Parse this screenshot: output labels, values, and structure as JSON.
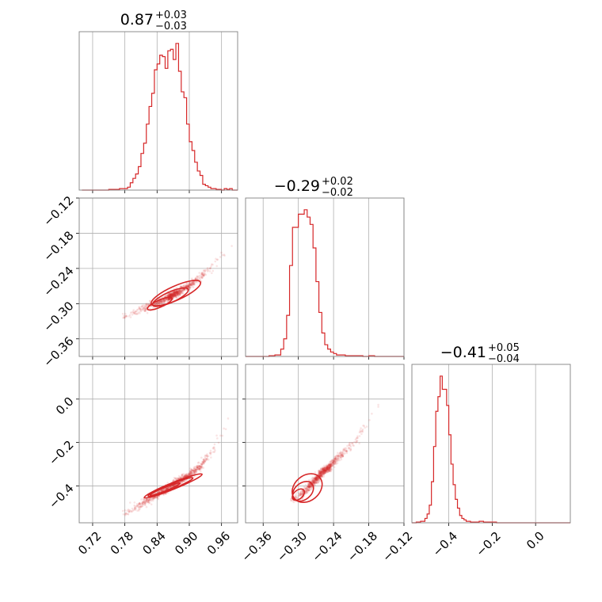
{
  "colors": {
    "series": "#d62728",
    "grid": "#b0b0b0",
    "frame": "#808080"
  },
  "chart_data": [
    {
      "type": "histogram",
      "panel": "1d-param-1",
      "title_value": "0.87",
      "title_plus": "+0.03",
      "title_minus": "−0.03",
      "xlim": [
        0.695,
        0.99
      ],
      "ylim": [
        0,
        1.08
      ],
      "grid": true,
      "bins": [
        0.7,
        0.71,
        0.72,
        0.73,
        0.74,
        0.75,
        0.76,
        0.77,
        0.78,
        0.785,
        0.79,
        0.795,
        0.8,
        0.805,
        0.81,
        0.815,
        0.82,
        0.825,
        0.83,
        0.835,
        0.84,
        0.845,
        0.85,
        0.855,
        0.86,
        0.865,
        0.87,
        0.875,
        0.88,
        0.885,
        0.89,
        0.895,
        0.9,
        0.905,
        0.91,
        0.915,
        0.92,
        0.925,
        0.93,
        0.935,
        0.94,
        0.945,
        0.95,
        0.955,
        0.96,
        0.965,
        0.97,
        0.975,
        0.98,
        0.985,
        0.99
      ],
      "counts": [
        0,
        0,
        0,
        0,
        0,
        0.005,
        0.005,
        0.01,
        0.01,
        0.02,
        0.05,
        0.08,
        0.11,
        0.16,
        0.25,
        0.32,
        0.45,
        0.57,
        0.66,
        0.82,
        0.86,
        0.92,
        0.91,
        0.83,
        0.95,
        0.96,
        0.89,
        1.0,
        0.81,
        0.67,
        0.63,
        0.45,
        0.33,
        0.27,
        0.19,
        0.13,
        0.1,
        0.04,
        0.03,
        0.02,
        0.01,
        0.01,
        0.005,
        0.005,
        0,
        0.01,
        0.005,
        0.01,
        0,
        0
      ]
    },
    {
      "type": "histogram",
      "panel": "1d-param-2",
      "title_value": "−0.29",
      "title_plus": "+0.02",
      "title_minus": "−0.02",
      "xlim": [
        -0.39,
        -0.12
      ],
      "ylim": [
        0,
        1.08
      ],
      "grid": true,
      "bins": [
        -0.39,
        -0.38,
        -0.37,
        -0.36,
        -0.35,
        -0.34,
        -0.33,
        -0.325,
        -0.32,
        -0.315,
        -0.31,
        -0.305,
        -0.3,
        -0.295,
        -0.29,
        -0.285,
        -0.28,
        -0.275,
        -0.27,
        -0.265,
        -0.26,
        -0.255,
        -0.25,
        -0.245,
        -0.24,
        -0.235,
        -0.23,
        -0.22,
        -0.21,
        -0.2,
        -0.19,
        -0.18,
        -0.17,
        -0.16,
        -0.15,
        -0.14,
        -0.13,
        -0.12
      ],
      "counts": [
        0,
        0,
        0,
        0,
        0.005,
        0.01,
        0.05,
        0.12,
        0.28,
        0.62,
        0.88,
        0.88,
        0.97,
        0.97,
        1.0,
        0.95,
        0.9,
        0.74,
        0.51,
        0.3,
        0.16,
        0.08,
        0.05,
        0.03,
        0.02,
        0.01,
        0.01,
        0.005,
        0.005,
        0.005,
        0,
        0.005,
        0,
        0,
        0,
        0,
        0
      ]
    },
    {
      "type": "histogram",
      "panel": "1d-param-3",
      "title_value": "−0.41",
      "title_plus": "+0.05",
      "title_minus": "−0.04",
      "xlim": [
        -0.57,
        0.16
      ],
      "ylim": [
        0,
        1.08
      ],
      "grid": true,
      "bins": [
        -0.57,
        -0.55,
        -0.53,
        -0.51,
        -0.5,
        -0.49,
        -0.48,
        -0.47,
        -0.46,
        -0.45,
        -0.44,
        -0.43,
        -0.42,
        -0.41,
        -0.4,
        -0.39,
        -0.38,
        -0.37,
        -0.36,
        -0.35,
        -0.34,
        -0.33,
        -0.32,
        -0.3,
        -0.28,
        -0.26,
        -0.24,
        -0.22,
        -0.2,
        -0.18,
        -0.16,
        -0.14,
        -0.12,
        -0.1,
        0.16
      ],
      "counts": [
        0,
        0.005,
        0.01,
        0.03,
        0.06,
        0.12,
        0.28,
        0.52,
        0.76,
        0.86,
        1.0,
        0.91,
        0.91,
        0.8,
        0.6,
        0.4,
        0.26,
        0.16,
        0.1,
        0.05,
        0.03,
        0.02,
        0.01,
        0.005,
        0.005,
        0.01,
        0.005,
        0.005,
        0.005,
        0,
        0,
        0,
        0,
        0
      ]
    },
    {
      "type": "scatter",
      "panel": "2d-param-1-vs-param-2",
      "xlim": [
        0.695,
        0.99
      ],
      "ylim": [
        -0.39,
        -0.12
      ],
      "grid": true,
      "yticks": [
        -0.36,
        -0.3,
        -0.24,
        -0.18,
        -0.12
      ],
      "yticklabels": [
        "−0.36",
        "−0.30",
        "−0.24",
        "−0.18",
        "−0.12"
      ],
      "curve_x": [
        0.78,
        0.8,
        0.82,
        0.84,
        0.86,
        0.87,
        0.88,
        0.9,
        0.92,
        0.94,
        0.96,
        0.98
      ],
      "curve_y": [
        -0.322,
        -0.315,
        -0.307,
        -0.299,
        -0.29,
        -0.285,
        -0.28,
        -0.269,
        -0.256,
        -0.24,
        -0.221,
        -0.2
      ],
      "contours": [
        {
          "cx": 0.845,
          "cy": -0.3,
          "rx": 0.025,
          "ry": 0.006,
          "angle": 24
        },
        {
          "cx": 0.865,
          "cy": -0.289,
          "rx": 0.036,
          "ry": 0.009,
          "angle": 24
        },
        {
          "cx": 0.875,
          "cy": -0.282,
          "rx": 0.05,
          "ry": 0.012,
          "angle": 24
        }
      ]
    },
    {
      "type": "scatter",
      "panel": "2d-param-1-vs-param-3",
      "xlim": [
        0.695,
        0.99
      ],
      "ylim": [
        -0.57,
        0.16
      ],
      "grid": true,
      "yticks": [
        -0.4,
        -0.2,
        0.0
      ],
      "yticklabels": [
        "−0.4",
        "−0.2",
        "0.0"
      ],
      "xticks": [
        0.72,
        0.78,
        0.84,
        0.9,
        0.96
      ],
      "xticklabels": [
        "0.72",
        "0.78",
        "0.84",
        "0.90",
        "0.96"
      ],
      "curve_x": [
        0.78,
        0.8,
        0.82,
        0.84,
        0.86,
        0.88,
        0.9,
        0.92,
        0.94,
        0.96,
        0.98
      ],
      "curve_y": [
        -0.53,
        -0.5,
        -0.47,
        -0.44,
        -0.41,
        -0.38,
        -0.35,
        -0.31,
        -0.25,
        -0.17,
        -0.07
      ],
      "contours": [
        {
          "cx": 0.855,
          "cy": -0.415,
          "rx": 0.03,
          "ry": 0.008,
          "angle": 22
        },
        {
          "cx": 0.865,
          "cy": -0.405,
          "rx": 0.045,
          "ry": 0.012,
          "angle": 22
        },
        {
          "cx": 0.87,
          "cy": -0.4,
          "rx": 0.058,
          "ry": 0.015,
          "angle": 22
        }
      ]
    },
    {
      "type": "scatter",
      "panel": "2d-param-2-vs-param-3",
      "xlim": [
        -0.39,
        -0.12
      ],
      "ylim": [
        -0.57,
        0.16
      ],
      "grid": true,
      "xticks": [
        -0.36,
        -0.3,
        -0.24,
        -0.18,
        -0.12
      ],
      "xticklabels": [
        "−0.36",
        "−0.30",
        "−0.24",
        "−0.18",
        "−0.12"
      ],
      "curve_x": [
        -0.31,
        -0.3,
        -0.29,
        -0.28,
        -0.27,
        -0.26,
        -0.25,
        -0.24,
        -0.22,
        -0.2,
        -0.18,
        -0.16
      ],
      "curve_y": [
        -0.47,
        -0.45,
        -0.43,
        -0.4,
        -0.37,
        -0.34,
        -0.32,
        -0.29,
        -0.24,
        -0.18,
        -0.11,
        -0.03
      ],
      "contours": [
        {
          "cx": -0.3,
          "cy": -0.44,
          "rx": 0.012,
          "ry": 0.02,
          "angle": 40
        },
        {
          "cx": -0.292,
          "cy": -0.425,
          "rx": 0.02,
          "ry": 0.038,
          "angle": 40
        },
        {
          "cx": -0.285,
          "cy": -0.41,
          "rx": 0.028,
          "ry": 0.058,
          "angle": 40
        }
      ]
    },
    {
      "type": "axis",
      "panel": "1d-param-3-axis",
      "xticks": [
        -0.4,
        -0.2,
        0.0
      ],
      "xticklabels": [
        "−0.4",
        "−0.2",
        "0.0"
      ]
    }
  ]
}
